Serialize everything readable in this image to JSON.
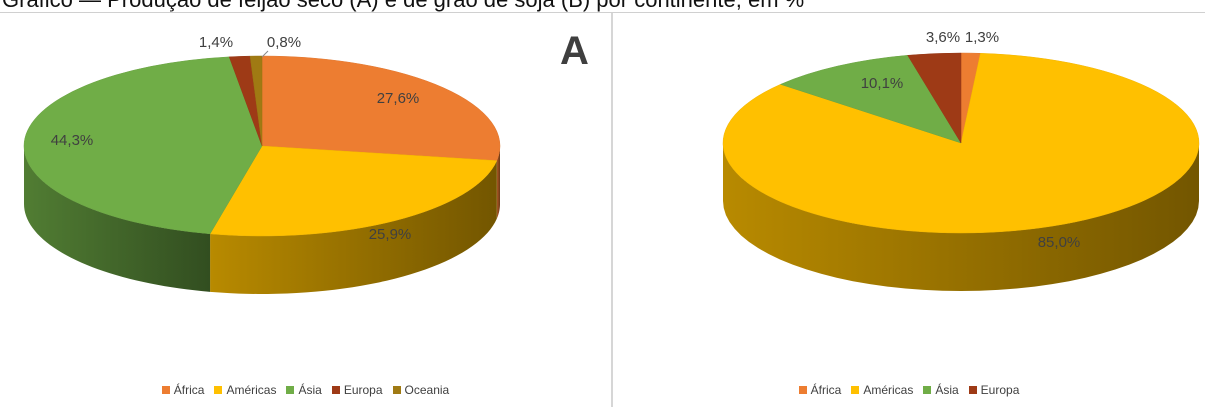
{
  "page": {
    "title_fragment": "Gráfico — Produção de feijão seco (A) e de grão de soja (B) por continente, em %"
  },
  "colors": {
    "África": "#ED7D31",
    "Américas": "#FFC000",
    "Ásia": "#70AD47",
    "Europa": "#9E3A16",
    "Oceania": "#A07A13"
  },
  "chart_data": [
    {
      "type": "pie",
      "panel_label": "A",
      "categories": [
        "África",
        "Américas",
        "Ásia",
        "Europa",
        "Oceania"
      ],
      "values": [
        27.6,
        25.9,
        44.3,
        1.4,
        0.8
      ],
      "data_labels": [
        "27,6%",
        "25,9%",
        "44,3%",
        "1,4%",
        "0,8%"
      ],
      "legend": [
        "África",
        "Américas",
        "Ásia",
        "Europa",
        "Oceania"
      ],
      "legend_position": "bottom",
      "style": "3d"
    },
    {
      "type": "pie",
      "panel_label": "",
      "categories": [
        "África",
        "Américas",
        "Ásia",
        "Europa"
      ],
      "values": [
        1.3,
        85.0,
        10.1,
        3.6
      ],
      "data_labels": [
        "1,3%",
        "85,0%",
        "10,1%",
        "3,6%"
      ],
      "legend": [
        "África",
        "Américas",
        "Ásia",
        "Europa"
      ],
      "legend_position": "bottom",
      "style": "3d"
    }
  ]
}
